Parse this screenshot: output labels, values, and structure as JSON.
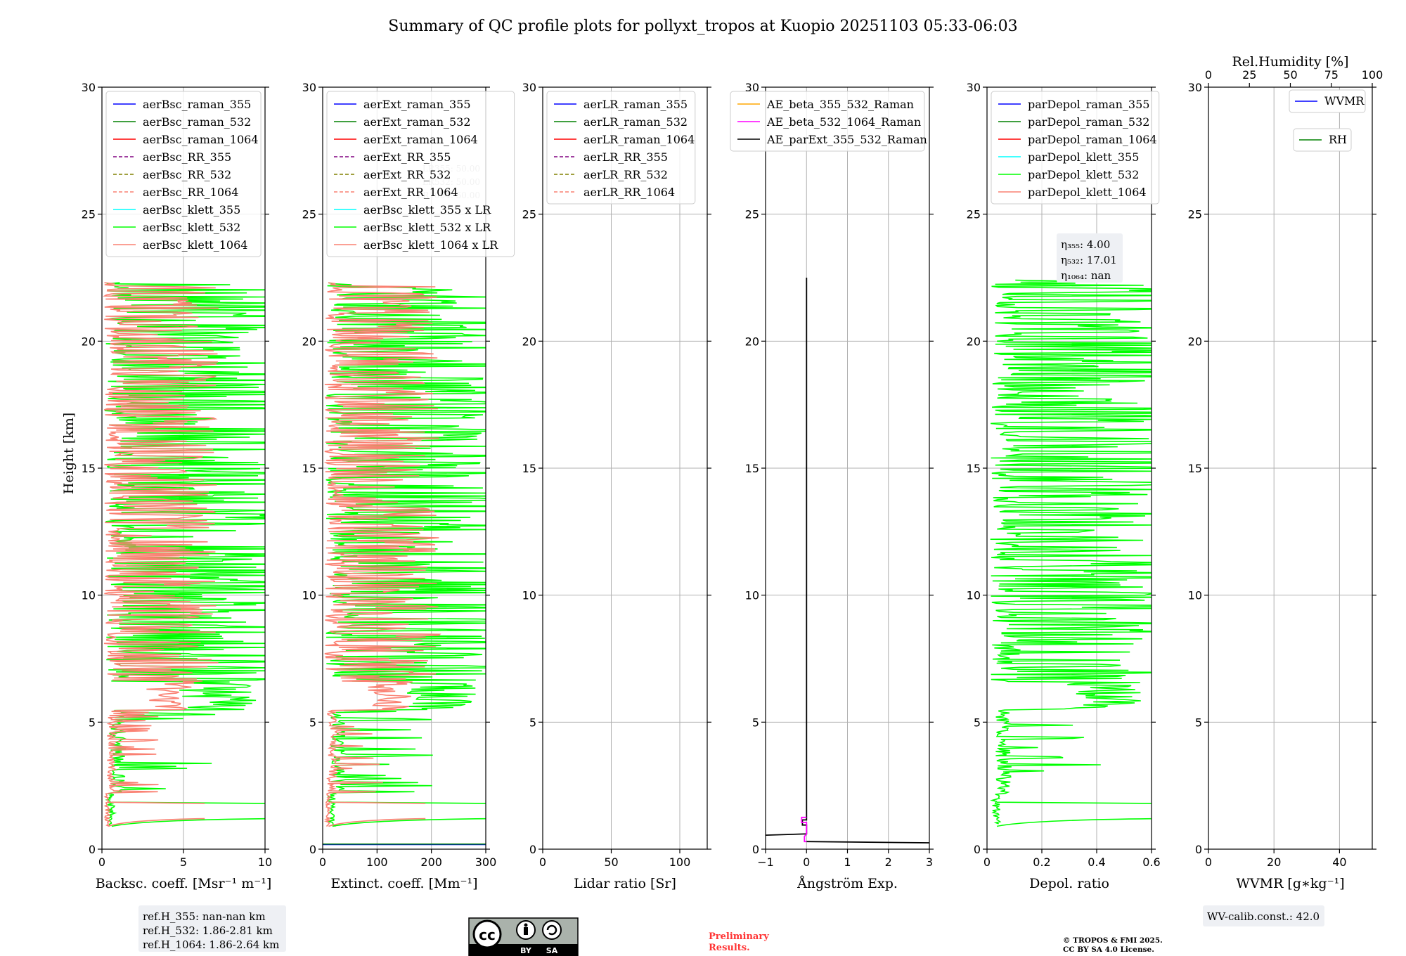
{
  "title": "Summary of QC profile plots for pollyxt_tropos at Kuopio 20251103 05:33-06:03",
  "ylabel": "Height [km]",
  "colors": {
    "blue": "#0000ff",
    "green": "#008000",
    "red": "#ff0000",
    "purple": "#800080",
    "olive": "#808000",
    "salmon": "#fa8072",
    "cyan": "#00ffff",
    "lime": "#00ff00",
    "orange": "#ffa500",
    "magenta": "#ff00ff",
    "black": "#000000"
  },
  "chart_data": [
    {
      "type": "line",
      "id": "bsc",
      "xlabel": "Backsc. coeff. [Msr⁻¹ m⁻¹]",
      "xlim": [
        0,
        10
      ],
      "ylim": [
        0,
        30
      ],
      "xticks": [
        0,
        5,
        10
      ],
      "yticks": [
        0,
        5,
        10,
        15,
        20,
        25,
        30
      ],
      "legend": [
        {
          "label": "aerBsc_raman_355",
          "color": "blue",
          "dash": false
        },
        {
          "label": "aerBsc_raman_532",
          "color": "green",
          "dash": false
        },
        {
          "label": "aerBsc_raman_1064",
          "color": "red",
          "dash": false
        },
        {
          "label": "aerBsc_RR_355",
          "color": "purple",
          "dash": true
        },
        {
          "label": "aerBsc_RR_532",
          "color": "olive",
          "dash": true
        },
        {
          "label": "aerBsc_RR_1064",
          "color": "salmon",
          "dash": true
        },
        {
          "label": "aerBsc_klett_355",
          "color": "cyan",
          "dash": false
        },
        {
          "label": "aerBsc_klett_532",
          "color": "lime",
          "dash": false
        },
        {
          "label": "aerBsc_klett_1064",
          "color": "salmon",
          "dash": false
        }
      ],
      "series": [
        {
          "name": "aerBsc_klett_532",
          "color": "lime",
          "seed": 11,
          "amp": 10,
          "top": 22.3,
          "bottom": 0.9
        },
        {
          "name": "aerBsc_klett_1064",
          "color": "salmon",
          "seed": 23,
          "amp": 6,
          "top": 22.3,
          "bottom": 0.9
        }
      ],
      "info": [
        "ref.H_355: nan-nan km",
        "ref.H_532: 1.86-2.81 km",
        "ref.H_1064: 1.86-2.64 km"
      ]
    },
    {
      "type": "line",
      "id": "ext",
      "xlabel": "Extinct. coeff. [Mm⁻¹]",
      "xlim": [
        0,
        300
      ],
      "ylim": [
        0,
        30
      ],
      "xticks": [
        0,
        100,
        200,
        300
      ],
      "yticks": [
        0,
        5,
        10,
        15,
        20,
        25,
        30
      ],
      "legend": [
        {
          "label": "aerExt_raman_355",
          "color": "blue",
          "dash": false
        },
        {
          "label": "aerExt_raman_532",
          "color": "green",
          "dash": false
        },
        {
          "label": "aerExt_raman_1064",
          "color": "red",
          "dash": false
        },
        {
          "label": "aerExt_RR_355",
          "color": "purple",
          "dash": true
        },
        {
          "label": "aerExt_RR_532",
          "color": "olive",
          "dash": true
        },
        {
          "label": "aerExt_RR_1064",
          "color": "salmon",
          "dash": true
        },
        {
          "label": "aerBsc_klett_355 x LR",
          "color": "cyan",
          "dash": false
        },
        {
          "label": "aerBsc_klett_532 x LR",
          "color": "lime",
          "dash": false
        },
        {
          "label": "aerBsc_klett_1064 x LR",
          "color": "salmon",
          "dash": false
        }
      ],
      "series": [
        {
          "name": "aerBsc_klett_532 x LR",
          "color": "lime",
          "seed": 31,
          "amp": 300,
          "top": 22.3,
          "bottom": 0.9
        },
        {
          "name": "aerBsc_klett_1064 x LR",
          "color": "salmon",
          "seed": 47,
          "amp": 180,
          "top": 22.3,
          "bottom": 0.9
        }
      ],
      "hlines": [
        {
          "y": 0.18,
          "color": "blue"
        },
        {
          "y": 0.2,
          "color": "green"
        }
      ],
      "faint": [
        "LR355: 50.00",
        "LR532: 50.00",
        "LR1064: 50.00"
      ]
    },
    {
      "type": "line",
      "id": "lr",
      "xlabel": "Lidar ratio [Sr]",
      "xlim": [
        0,
        120
      ],
      "ylim": [
        0,
        30
      ],
      "xticks": [
        0,
        50,
        100
      ],
      "yticks": [
        0,
        5,
        10,
        15,
        20,
        25,
        30
      ],
      "legend": [
        {
          "label": "aerLR_raman_355",
          "color": "blue",
          "dash": false
        },
        {
          "label": "aerLR_raman_532",
          "color": "green",
          "dash": false
        },
        {
          "label": "aerLR_raman_1064",
          "color": "red",
          "dash": false
        },
        {
          "label": "aerLR_RR_355",
          "color": "purple",
          "dash": true
        },
        {
          "label": "aerLR_RR_532",
          "color": "olive",
          "dash": true
        },
        {
          "label": "aerLR_RR_1064",
          "color": "salmon",
          "dash": true
        }
      ],
      "series": []
    },
    {
      "type": "line",
      "id": "ae",
      "xlabel": "Ångström Exp.",
      "xlim": [
        -1,
        3
      ],
      "ylim": [
        0,
        30
      ],
      "xticks": [
        -1,
        0,
        1,
        2,
        3
      ],
      "yticks": [
        0,
        5,
        10,
        15,
        20,
        25,
        30
      ],
      "legend": [
        {
          "label": "AE_beta_355_532_Raman",
          "color": "orange",
          "dash": false
        },
        {
          "label": "AE_beta_532_1064_Raman",
          "color": "magenta",
          "dash": false
        },
        {
          "label": "AE_parExt_355_532_Raman",
          "color": "black",
          "dash": false
        }
      ],
      "lines": [
        {
          "color": "black",
          "points": [
            [
              0,
              22.5
            ],
            [
              0,
              1.15
            ],
            [
              -0.1,
              1.15
            ],
            [
              -0.1,
              0.95
            ],
            [
              0,
              0.95
            ],
            [
              0,
              0.6
            ],
            [
              -1,
              0.55
            ]
          ]
        },
        {
          "color": "black",
          "points": [
            [
              0,
              0.3
            ],
            [
              3,
              0.25
            ]
          ]
        },
        {
          "color": "magenta",
          "points": [
            [
              0,
              1.25
            ],
            [
              -0.12,
              1.25
            ],
            [
              -0.12,
              1.05
            ],
            [
              0,
              1.05
            ],
            [
              0,
              0.6
            ],
            [
              -0.05,
              0.5
            ],
            [
              -0.05,
              0.3
            ],
            [
              0,
              0.3
            ]
          ]
        }
      ]
    },
    {
      "type": "line",
      "id": "depol",
      "xlabel": "Depol. ratio",
      "xlim": [
        0,
        0.6
      ],
      "ylim": [
        0,
        30
      ],
      "xticks": [
        0,
        0.2,
        0.4,
        0.6
      ],
      "yticks": [
        0,
        5,
        10,
        15,
        20,
        25,
        30
      ],
      "legend": [
        {
          "label": "parDepol_raman_355",
          "color": "blue",
          "dash": false
        },
        {
          "label": "parDepol_raman_532",
          "color": "green",
          "dash": false
        },
        {
          "label": "parDepol_raman_1064",
          "color": "red",
          "dash": false
        },
        {
          "label": "parDepol_klett_355",
          "color": "cyan",
          "dash": false
        },
        {
          "label": "parDepol_klett_532",
          "color": "lime",
          "dash": false
        },
        {
          "label": "parDepol_klett_1064",
          "color": "salmon",
          "dash": false
        }
      ],
      "series": [
        {
          "name": "parDepol_klett_532",
          "color": "lime",
          "seed": 59,
          "amp": 0.6,
          "top": 22.4,
          "bottom": 1.0
        }
      ],
      "eta": [
        "η₃₅₅: 4.00",
        "η₅₃₂: 17.01",
        "η₁₀₆₄: nan"
      ]
    },
    {
      "type": "line",
      "id": "wv",
      "xlabel": "WVMR [g∗kg⁻¹]",
      "xlim": [
        0,
        50
      ],
      "ylim": [
        0,
        30
      ],
      "xticks": [
        0,
        20,
        40
      ],
      "yticks": [
        0,
        5,
        10,
        15,
        20,
        25,
        30
      ],
      "top_axis_label": "Rel.Humidity [%]",
      "top_xlim": [
        0,
        100
      ],
      "top_xticks": [
        0,
        25,
        50,
        75,
        100
      ],
      "legend": [
        {
          "label": "WVMR",
          "color": "blue",
          "dash": false
        },
        {
          "label": "RH",
          "color": "green",
          "dash": false
        }
      ],
      "series": [],
      "info": [
        "WV-calib.const.: 42.0"
      ]
    }
  ],
  "footer": {
    "license_badge": [
      "cc",
      "BY",
      "SA"
    ],
    "preliminary": [
      "Preliminary",
      "Results."
    ],
    "copyright": [
      "© TROPOS & FMI 2025.",
      "CC BY SA 4.0 License."
    ]
  }
}
